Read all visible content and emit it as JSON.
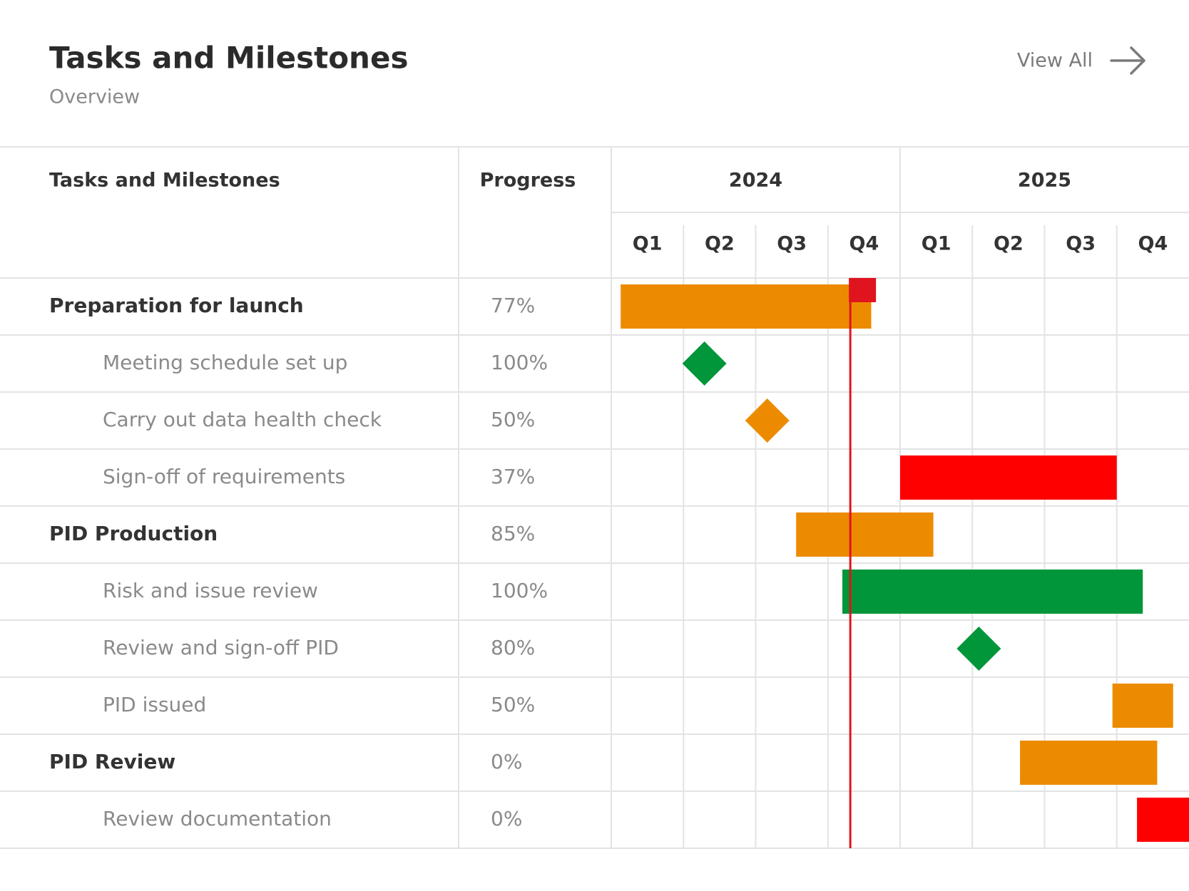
{
  "header": {
    "title": "Tasks and Milestones",
    "subtitle": "Overview",
    "link": "View All"
  },
  "table": {
    "columns": [
      "Tasks and Milestones",
      "Progress"
    ],
    "years": [
      "2024",
      "2025"
    ],
    "quarters": [
      "Q1",
      "Q2",
      "Q3",
      "Q4",
      "Q1",
      "Q2",
      "Q3",
      "Q4"
    ],
    "today": 3.31,
    "today_color": "#e0141e",
    "rows": [
      {
        "name": "Preparation for launch",
        "progress": "77%",
        "level": "group",
        "kind": "bar",
        "start": 0.13,
        "end": 3.6,
        "color": "#ec8b00"
      },
      {
        "name": "Meeting schedule set up",
        "progress": "100%",
        "level": "task",
        "kind": "milestone",
        "start": 1.29,
        "color": "#009639"
      },
      {
        "name": "Carry out data health check",
        "progress": "50%",
        "level": "task",
        "kind": "milestone",
        "start": 2.16,
        "color": "#ec8b00"
      },
      {
        "name": "Sign-off of requirements",
        "progress": "37%",
        "level": "task",
        "kind": "bar",
        "start": 4.0,
        "end": 7.0,
        "color": "#ff0000"
      },
      {
        "name": "PID Production",
        "progress": "85%",
        "level": "group",
        "kind": "bar",
        "start": 2.56,
        "end": 4.46,
        "color": "#ec8b00"
      },
      {
        "name": "Risk and issue review",
        "progress": "100%",
        "level": "task",
        "kind": "bar",
        "start": 3.2,
        "end": 7.36,
        "color": "#009639"
      },
      {
        "name": "Review and sign-off PID",
        "progress": "80%",
        "level": "task",
        "kind": "milestone",
        "start": 5.09,
        "color": "#009639"
      },
      {
        "name": "PID issued",
        "progress": "50%",
        "level": "task",
        "kind": "bar",
        "start": 6.94,
        "end": 7.78,
        "color": "#ec8b00"
      },
      {
        "name": "PID Review",
        "progress": "0%",
        "level": "group",
        "kind": "bar",
        "start": 5.66,
        "end": 7.56,
        "color": "#ec8b00"
      },
      {
        "name": "Review documentation",
        "progress": "0%",
        "level": "task",
        "kind": "bar",
        "start": 7.28,
        "end": 8.0,
        "color": "#ff0000"
      }
    ]
  }
}
